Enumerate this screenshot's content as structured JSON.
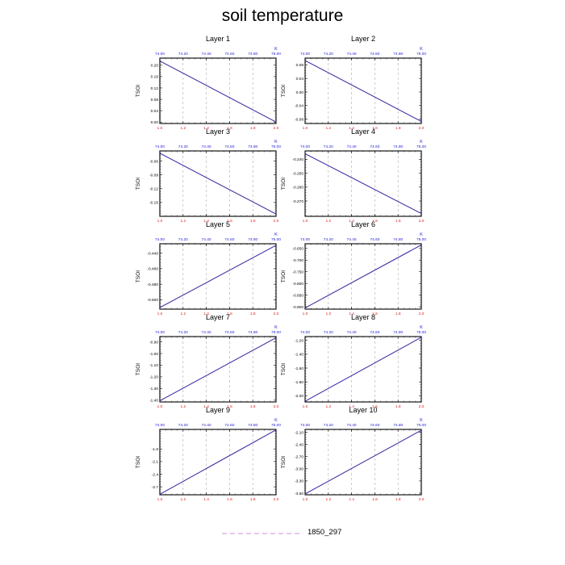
{
  "title": "soil temperature",
  "legend": {
    "label": "1850_297",
    "color": "#d7a6df"
  },
  "colors": {
    "line": "#3a1f9e",
    "bottom_ticks": "#e02020",
    "top_ticks": "#1f1fd6",
    "grid": "#aaaaaa"
  },
  "chart_data": [
    {
      "type": "line",
      "title": "Layer 1",
      "ylabel": "TSOI",
      "xlim": [
        1.0,
        2.0
      ],
      "x": [
        1.0,
        2.0
      ],
      "y": [
        0.215,
        0.0
      ],
      "ylim": [
        -0.005,
        0.225
      ],
      "yticks": [
        0.2,
        0.16,
        0.12,
        0.08,
        0.04,
        0.0
      ],
      "ytick_labels": [
        "0.20",
        "0.16",
        "0.12",
        "0.08",
        "0.04",
        "0.00"
      ]
    },
    {
      "type": "line",
      "title": "Layer 2",
      "ylabel": "TSOI",
      "xlim": [
        1.0,
        2.0
      ],
      "x": [
        1.0,
        2.0
      ],
      "y": [
        0.093,
        -0.087
      ],
      "ylim": [
        -0.093,
        0.1
      ],
      "yticks": [
        0.08,
        0.04,
        0.0,
        -0.04,
        -0.08
      ],
      "ytick_labels": [
        "0.08",
        "0.04",
        "0.00",
        "-0.04",
        "-0.08"
      ]
    },
    {
      "type": "line",
      "title": "Layer 3",
      "ylabel": "TSOI",
      "xlim": [
        1.0,
        2.0
      ],
      "x": [
        1.0,
        2.0
      ],
      "y": [
        -0.043,
        -0.175
      ],
      "ylim": [
        -0.18,
        -0.038
      ],
      "yticks": [
        -0.06,
        -0.09,
        -0.12,
        -0.15
      ],
      "ytick_labels": [
        "-0.06",
        "-0.09",
        "-0.12",
        "-0.15"
      ]
    },
    {
      "type": "line",
      "title": "Layer 4",
      "ylabel": "TSOI",
      "xlim": [
        1.0,
        2.0
      ],
      "x": [
        1.0,
        2.0
      ],
      "y": [
        -0.236,
        -0.279
      ],
      "ylim": [
        -0.281,
        -0.234
      ],
      "yticks": [
        -0.24,
        -0.25,
        -0.26,
        -0.27
      ],
      "ytick_labels": [
        "-0.240",
        "-0.250",
        "-0.260",
        "-0.270"
      ]
    },
    {
      "type": "line",
      "title": "Layer 5",
      "ylabel": "TSOI",
      "xlim": [
        1.0,
        2.0
      ],
      "x": [
        1.0,
        2.0
      ],
      "y": [
        -0.51,
        -0.43
      ],
      "ylim": [
        -0.512,
        -0.428
      ],
      "yticks": [
        -0.44,
        -0.46,
        -0.48,
        -0.5
      ],
      "ytick_labels": [
        "-0.440",
        "-0.460",
        "-0.480",
        "-0.500"
      ]
    },
    {
      "type": "line",
      "title": "Layer 6",
      "ylabel": "TSOI",
      "xlim": [
        1.0,
        2.0
      ],
      "x": [
        1.0,
        2.0
      ],
      "y": [
        -0.905,
        -0.635
      ],
      "ylim": [
        -0.91,
        -0.63
      ],
      "yticks": [
        -0.65,
        -0.7,
        -0.75,
        -0.8,
        -0.85,
        -0.9
      ],
      "ytick_labels": [
        "-0.650",
        "-0.700",
        "-0.750",
        "-0.800",
        "-0.850",
        "-0.900"
      ]
    },
    {
      "type": "line",
      "title": "Layer 7",
      "ylabel": "TSOI",
      "xlim": [
        1.0,
        2.0
      ],
      "x": [
        1.0,
        2.0
      ],
      "y": [
        -1.405,
        -0.865
      ],
      "ylim": [
        -1.415,
        -0.855
      ],
      "yticks": [
        -0.9,
        -1.0,
        -1.1,
        -1.2,
        -1.3,
        -1.4
      ],
      "ytick_labels": [
        "-0.90",
        "-1.00",
        "-1.10",
        "-1.20",
        "-1.30",
        "-1.40"
      ]
    },
    {
      "type": "line",
      "title": "Layer 8",
      "ylabel": "TSOI",
      "xlim": [
        1.0,
        2.0
      ],
      "x": [
        1.0,
        2.0
      ],
      "y": [
        -2.08,
        -1.155
      ],
      "ylim": [
        -2.09,
        -1.145
      ],
      "yticks": [
        -1.2,
        -1.4,
        -1.6,
        -1.8,
        -2.0
      ],
      "ytick_labels": [
        "-1.20",
        "-1.40",
        "-1.60",
        "-1.80",
        "-2.00"
      ]
    },
    {
      "type": "line",
      "title": "Layer 9",
      "ylabel": "TSOI",
      "xlim": [
        1.0,
        2.0
      ],
      "x": [
        1.0,
        2.0
      ],
      "y": [
        -2.88,
        -1.345
      ],
      "ylim": [
        -2.89,
        -1.335
      ],
      "yticks": [
        -1.8,
        -2.1,
        -2.4,
        -2.7
      ],
      "ytick_labels": [
        "-1.8",
        "-2.1",
        "-2.4",
        "-2.7"
      ]
    },
    {
      "type": "line",
      "title": "Layer 10",
      "ylabel": "TSOI",
      "xlim": [
        1.0,
        2.0
      ],
      "x": [
        1.0,
        2.0
      ],
      "y": [
        -3.62,
        -2.05
      ],
      "ylim": [
        -3.64,
        -2.03
      ],
      "yticks": [
        -2.1,
        -2.4,
        -2.7,
        -3.0,
        -3.3,
        -3.6
      ],
      "ytick_labels": [
        "-2.10",
        "-2.40",
        "-2.70",
        "-3.00",
        "-3.30",
        "-3.60"
      ]
    }
  ],
  "x_axis": {
    "bottom_ticks": [
      1.0,
      1.2,
      1.4,
      1.6,
      1.8,
      2.0
    ],
    "bottom_labels": [
      "1.0",
      "1.2",
      "1.4",
      "1.6",
      "1.8",
      "2.0"
    ],
    "top_ticks": [
      74.0,
      74.2,
      74.4,
      74.6,
      74.8,
      75.0
    ],
    "top_labels": [
      "74.00",
      "74.20",
      "74.40",
      "74.60",
      "74.80",
      "75.00"
    ],
    "top_unit": "K",
    "top_range": [
      74.0,
      75.0
    ],
    "grid": true
  }
}
